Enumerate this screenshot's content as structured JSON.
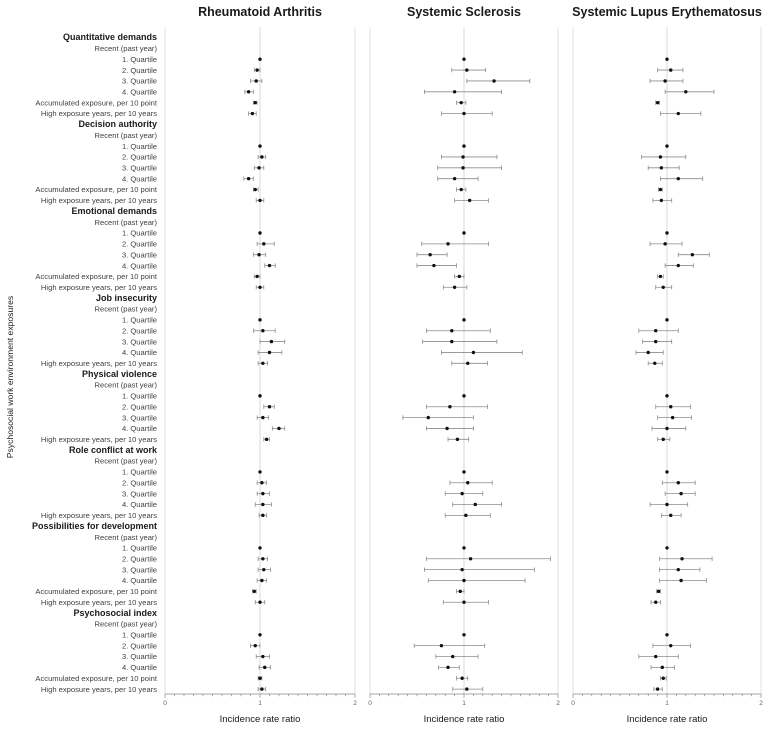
{
  "chart_data": {
    "type": "forest",
    "yaxis_label": "Psychosocial work environment exposures",
    "xlabel": "Incidence rate ratio",
    "xlim": [
      0,
      2
    ],
    "xticks": [
      "0",
      "1",
      "2"
    ],
    "panels": [
      "Rheumatoid Arthritis",
      "Systemic Sclerosis",
      "Systemic Lupus Erythematosus"
    ],
    "rows": [
      {
        "label": "Quantitative demands",
        "header": true
      },
      {
        "label": "Recent (past year)"
      },
      {
        "label": "1. Quartile",
        "est": [
          [
            1,
            1,
            1
          ],
          [
            1,
            1,
            1
          ],
          [
            1,
            1,
            1
          ]
        ]
      },
      {
        "label": "2. Quartile",
        "est": [
          [
            0.97,
            0.94,
            1.0
          ],
          [
            1.03,
            0.87,
            1.23
          ],
          [
            1.04,
            0.9,
            1.17
          ]
        ]
      },
      {
        "label": "3. Quartile",
        "est": [
          [
            0.96,
            0.9,
            1.02
          ],
          [
            1.32,
            1.03,
            1.7
          ],
          [
            0.98,
            0.82,
            1.17
          ]
        ]
      },
      {
        "label": "4. Quartile",
        "est": [
          [
            0.88,
            0.84,
            0.93
          ],
          [
            0.9,
            0.58,
            1.4
          ],
          [
            1.2,
            0.98,
            1.5
          ]
        ]
      },
      {
        "label": "Accumulated exposure, per 10 point",
        "est": [
          [
            0.95,
            0.93,
            0.97
          ],
          [
            0.97,
            0.92,
            1.02
          ],
          [
            0.9,
            0.88,
            0.92
          ]
        ]
      },
      {
        "label": "High exposure years, per 10 years",
        "est": [
          [
            0.92,
            0.88,
            0.96
          ],
          [
            1.0,
            0.76,
            1.3
          ],
          [
            1.12,
            0.93,
            1.36
          ]
        ]
      },
      {
        "label": "Decision authority",
        "header": true
      },
      {
        "label": "Recent (past year)"
      },
      {
        "label": "1. Quartile",
        "est": [
          [
            1,
            1,
            1
          ],
          [
            1,
            1,
            1
          ],
          [
            1,
            1,
            1
          ]
        ]
      },
      {
        "label": "2. Quartile",
        "est": [
          [
            1.02,
            0.98,
            1.06
          ],
          [
            0.99,
            0.76,
            1.35
          ],
          [
            0.93,
            0.73,
            1.2
          ]
        ]
      },
      {
        "label": "3. Quartile",
        "est": [
          [
            0.99,
            0.94,
            1.04
          ],
          [
            0.99,
            0.72,
            1.4
          ],
          [
            0.94,
            0.8,
            1.13
          ]
        ]
      },
      {
        "label": "4. Quartile",
        "est": [
          [
            0.88,
            0.83,
            0.93
          ],
          [
            0.9,
            0.72,
            1.15
          ],
          [
            1.12,
            0.93,
            1.38
          ]
        ]
      },
      {
        "label": "Accumulated exposure, per 10 point",
        "est": [
          [
            0.95,
            0.93,
            0.98
          ],
          [
            0.97,
            0.92,
            1.02
          ],
          [
            0.93,
            0.91,
            0.95
          ]
        ]
      },
      {
        "label": "High exposure years, per 10 years",
        "est": [
          [
            1.0,
            0.96,
            1.04
          ],
          [
            1.06,
            0.9,
            1.26
          ],
          [
            0.94,
            0.85,
            1.05
          ]
        ]
      },
      {
        "label": "Emotional demands",
        "header": true
      },
      {
        "label": "Recent (past year)"
      },
      {
        "label": "1. Quartile",
        "est": [
          [
            1,
            1,
            1
          ],
          [
            1,
            1,
            1
          ],
          [
            1,
            1,
            1
          ]
        ]
      },
      {
        "label": "2. Quartile",
        "est": [
          [
            1.04,
            0.97,
            1.15
          ],
          [
            0.83,
            0.55,
            1.26
          ],
          [
            0.98,
            0.82,
            1.16
          ]
        ]
      },
      {
        "label": "3. Quartile",
        "est": [
          [
            0.99,
            0.93,
            1.06
          ],
          [
            0.64,
            0.5,
            0.82
          ],
          [
            1.27,
            1.12,
            1.45
          ]
        ]
      },
      {
        "label": "4. Quartile",
        "est": [
          [
            1.1,
            1.05,
            1.16
          ],
          [
            0.68,
            0.5,
            0.92
          ],
          [
            1.12,
            0.98,
            1.28
          ]
        ]
      },
      {
        "label": "Accumulated exposure, per 10 point",
        "est": [
          [
            0.97,
            0.94,
            1.0
          ],
          [
            0.95,
            0.9,
            1.0
          ],
          [
            0.93,
            0.9,
            0.96
          ]
        ]
      },
      {
        "label": "High exposure years, per 10 years",
        "est": [
          [
            1.0,
            0.96,
            1.04
          ],
          [
            0.9,
            0.78,
            1.03
          ],
          [
            0.96,
            0.88,
            1.05
          ]
        ]
      },
      {
        "label": "Job insecurity",
        "header": true
      },
      {
        "label": "Recent (past year)"
      },
      {
        "label": "1. Quartile",
        "est": [
          [
            1,
            1,
            1
          ],
          [
            1,
            1,
            1
          ],
          [
            1,
            1,
            1
          ]
        ]
      },
      {
        "label": "2. Quartile",
        "est": [
          [
            1.03,
            0.93,
            1.16
          ],
          [
            0.87,
            0.6,
            1.28
          ],
          [
            0.88,
            0.7,
            1.12
          ]
        ]
      },
      {
        "label": "3. Quartile",
        "est": [
          [
            1.12,
            1.0,
            1.26
          ],
          [
            0.87,
            0.56,
            1.35
          ],
          [
            0.88,
            0.74,
            1.05
          ]
        ]
      },
      {
        "label": "4. Quartile",
        "est": [
          [
            1.1,
            0.98,
            1.23
          ],
          [
            1.1,
            0.76,
            1.62
          ],
          [
            0.8,
            0.67,
            0.96
          ]
        ]
      },
      {
        "label": "High exposure years, per 10 years",
        "est": [
          [
            1.03,
            0.98,
            1.08
          ],
          [
            1.04,
            0.87,
            1.25
          ],
          [
            0.87,
            0.8,
            0.95
          ]
        ]
      },
      {
        "label": "Physical violence",
        "header": true
      },
      {
        "label": "Recent (past year)"
      },
      {
        "label": "1. Quartile",
        "est": [
          [
            1,
            1,
            1
          ],
          [
            1,
            1,
            1
          ],
          [
            1,
            1,
            1
          ]
        ]
      },
      {
        "label": "2. Quartile",
        "est": [
          [
            1.1,
            1.04,
            1.15
          ],
          [
            0.85,
            0.6,
            1.25
          ],
          [
            1.04,
            0.88,
            1.25
          ]
        ]
      },
      {
        "label": "3. Quartile",
        "est": [
          [
            1.03,
            0.97,
            1.09
          ],
          [
            0.62,
            0.35,
            1.1
          ],
          [
            1.06,
            0.9,
            1.26
          ]
        ]
      },
      {
        "label": "4. Quartile",
        "est": [
          [
            1.2,
            1.13,
            1.26
          ],
          [
            0.82,
            0.6,
            1.1
          ],
          [
            1.0,
            0.84,
            1.2
          ]
        ]
      },
      {
        "label": "High exposure years, per 10 years",
        "est": [
          [
            1.07,
            1.04,
            1.1
          ],
          [
            0.93,
            0.83,
            1.05
          ],
          [
            0.96,
            0.9,
            1.03
          ]
        ]
      },
      {
        "label": "Role conflict at work",
        "header": true
      },
      {
        "label": "Recent (past year)"
      },
      {
        "label": "1. Quartile",
        "est": [
          [
            1,
            1,
            1
          ],
          [
            1,
            1,
            1
          ],
          [
            1,
            1,
            1
          ]
        ]
      },
      {
        "label": "2. Quartile",
        "est": [
          [
            1.02,
            0.97,
            1.07
          ],
          [
            1.04,
            0.85,
            1.3
          ],
          [
            1.12,
            0.95,
            1.3
          ]
        ]
      },
      {
        "label": "3. Quartile",
        "est": [
          [
            1.03,
            0.97,
            1.1
          ],
          [
            0.98,
            0.8,
            1.2
          ],
          [
            1.15,
            0.98,
            1.3
          ]
        ]
      },
      {
        "label": "4. Quartile",
        "est": [
          [
            1.03,
            0.95,
            1.12
          ],
          [
            1.12,
            0.88,
            1.4
          ],
          [
            1.0,
            0.82,
            1.22
          ]
        ]
      },
      {
        "label": "High exposure years, per 10 years",
        "est": [
          [
            1.03,
            0.99,
            1.07
          ],
          [
            1.02,
            0.8,
            1.28
          ],
          [
            1.04,
            0.94,
            1.15
          ]
        ]
      },
      {
        "label": "Possibilities for development",
        "header": true
      },
      {
        "label": "Recent (past year)"
      },
      {
        "label": "1. Quartile",
        "est": [
          [
            1,
            1,
            1
          ],
          [
            1,
            1,
            1
          ],
          [
            1,
            1,
            1
          ]
        ]
      },
      {
        "label": "2. Quartile",
        "est": [
          [
            1.03,
            0.98,
            1.08
          ],
          [
            1.07,
            0.6,
            1.92
          ],
          [
            1.16,
            0.92,
            1.48
          ]
        ]
      },
      {
        "label": "3. Quartile",
        "est": [
          [
            1.04,
            0.98,
            1.11
          ],
          [
            0.98,
            0.58,
            1.75
          ],
          [
            1.12,
            0.92,
            1.35
          ]
        ]
      },
      {
        "label": "4. Quartile",
        "est": [
          [
            1.02,
            0.97,
            1.07
          ],
          [
            1.0,
            0.62,
            1.65
          ],
          [
            1.15,
            0.92,
            1.42
          ]
        ]
      },
      {
        "label": "Accumulated exposure, per 10 point",
        "est": [
          [
            0.94,
            0.92,
            0.96
          ],
          [
            0.96,
            0.92,
            1.0
          ],
          [
            0.91,
            0.89,
            0.93
          ]
        ]
      },
      {
        "label": "High exposure years, per 10 years",
        "est": [
          [
            1.0,
            0.95,
            1.05
          ],
          [
            1.0,
            0.78,
            1.26
          ],
          [
            0.88,
            0.83,
            0.93
          ]
        ]
      },
      {
        "label": "Psychosocial index",
        "header": true
      },
      {
        "label": "Recent (past year)"
      },
      {
        "label": "1. Quartile",
        "est": [
          [
            1,
            1,
            1
          ],
          [
            1,
            1,
            1
          ],
          [
            1,
            1,
            1
          ]
        ]
      },
      {
        "label": "2. Quartile",
        "est": [
          [
            0.95,
            0.9,
            1.0
          ],
          [
            0.76,
            0.47,
            1.22
          ],
          [
            1.04,
            0.85,
            1.25
          ]
        ]
      },
      {
        "label": "3. Quartile",
        "est": [
          [
            1.03,
            0.96,
            1.1
          ],
          [
            0.88,
            0.7,
            1.15
          ],
          [
            0.88,
            0.7,
            1.12
          ]
        ]
      },
      {
        "label": "4. Quartile",
        "est": [
          [
            1.05,
            0.99,
            1.11
          ],
          [
            0.83,
            0.73,
            0.95
          ],
          [
            0.95,
            0.83,
            1.08
          ]
        ]
      },
      {
        "label": "Accumulated exposure, per 10 point",
        "est": [
          [
            1.0,
            0.98,
            1.02
          ],
          [
            0.98,
            0.92,
            1.04
          ],
          [
            0.96,
            0.93,
            0.99
          ]
        ]
      },
      {
        "label": "High exposure years, per 10 years",
        "est": [
          [
            1.02,
            0.98,
            1.06
          ],
          [
            1.03,
            0.88,
            1.2
          ],
          [
            0.9,
            0.86,
            0.95
          ]
        ]
      }
    ]
  }
}
